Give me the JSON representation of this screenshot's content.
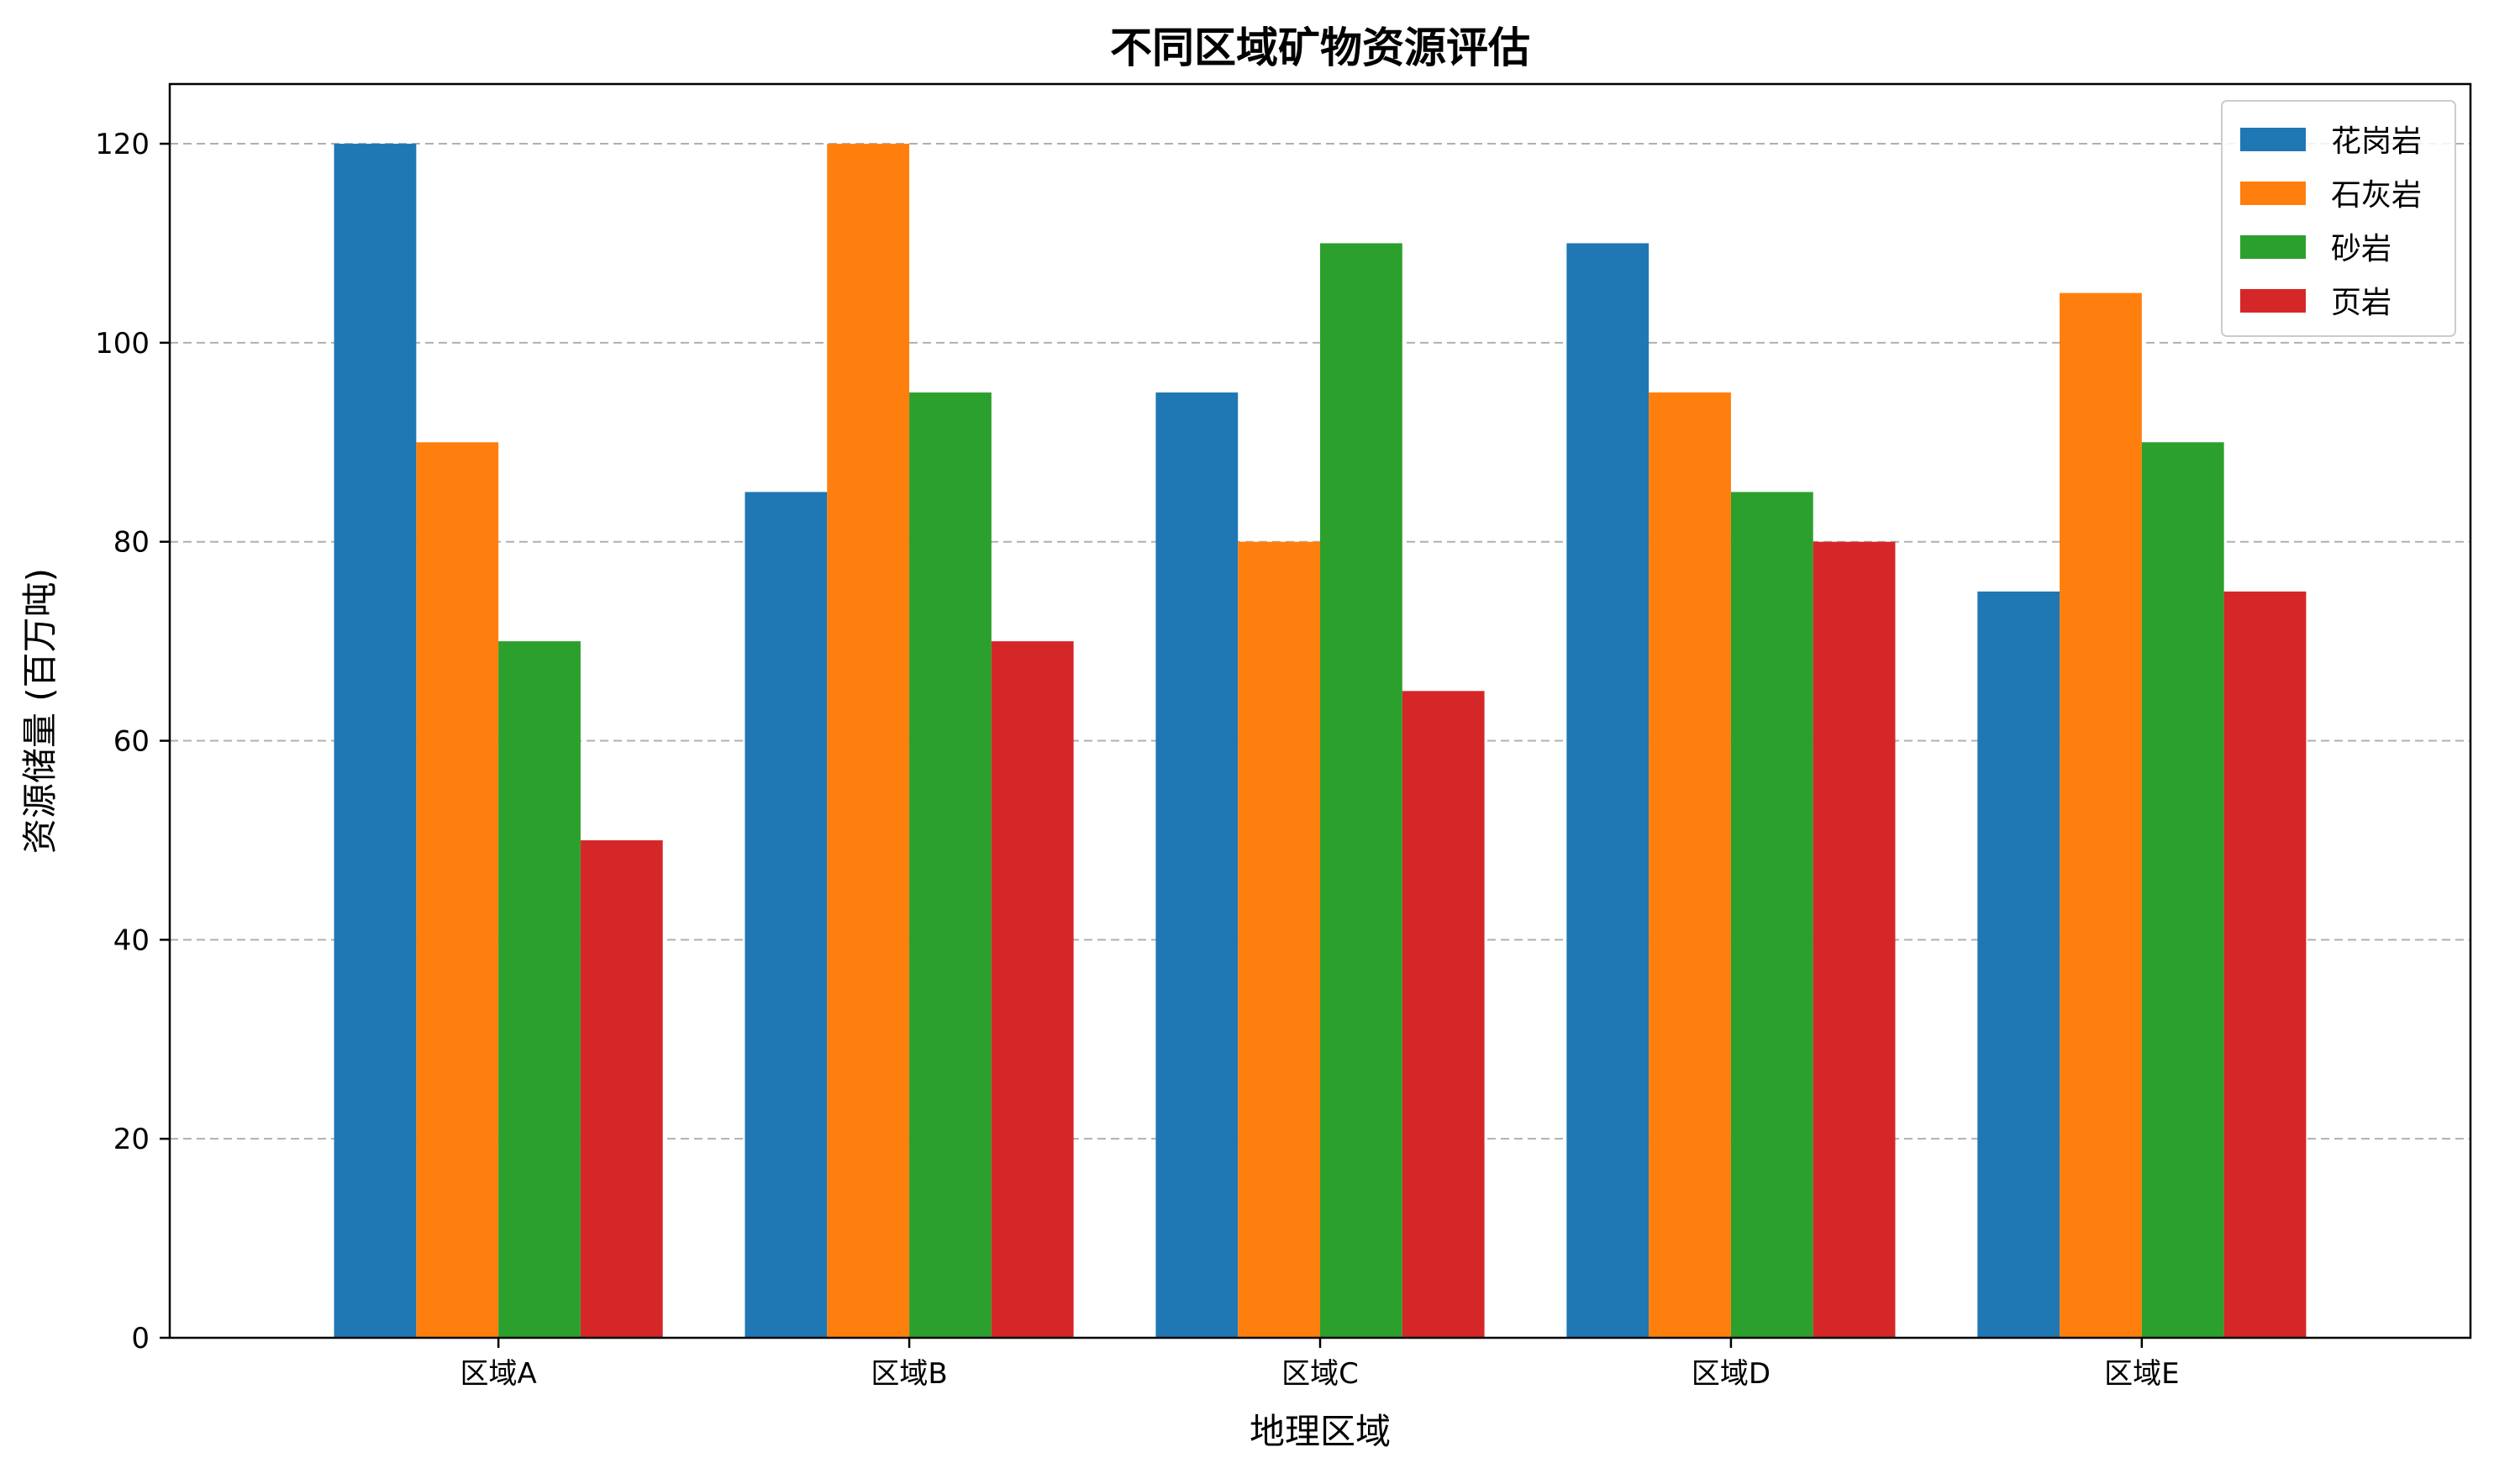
{
  "chart_data": {
    "type": "bar",
    "title": "不同区域矿物资源评估",
    "xlabel": "地理区域",
    "ylabel": "资源储量 (百万吨)",
    "categories": [
      "区域A",
      "区域B",
      "区域C",
      "区域D",
      "区域E"
    ],
    "series": [
      {
        "name": "花岗岩",
        "color": "#1f77b4",
        "values": [
          120,
          85,
          95,
          110,
          75
        ]
      },
      {
        "name": "石灰岩",
        "color": "#ff7f0e",
        "values": [
          90,
          120,
          80,
          95,
          105
        ]
      },
      {
        "name": "砂岩",
        "color": "#2ca02c",
        "values": [
          70,
          95,
          110,
          85,
          90
        ]
      },
      {
        "name": "页岩",
        "color": "#d62728",
        "values": [
          50,
          70,
          65,
          80,
          75
        ]
      }
    ],
    "ylim": [
      0,
      126
    ],
    "yticks": [
      "0",
      "20",
      "40",
      "60",
      "80",
      "100",
      "120"
    ],
    "grid": "y-dashed",
    "legend_position": "top-right"
  }
}
